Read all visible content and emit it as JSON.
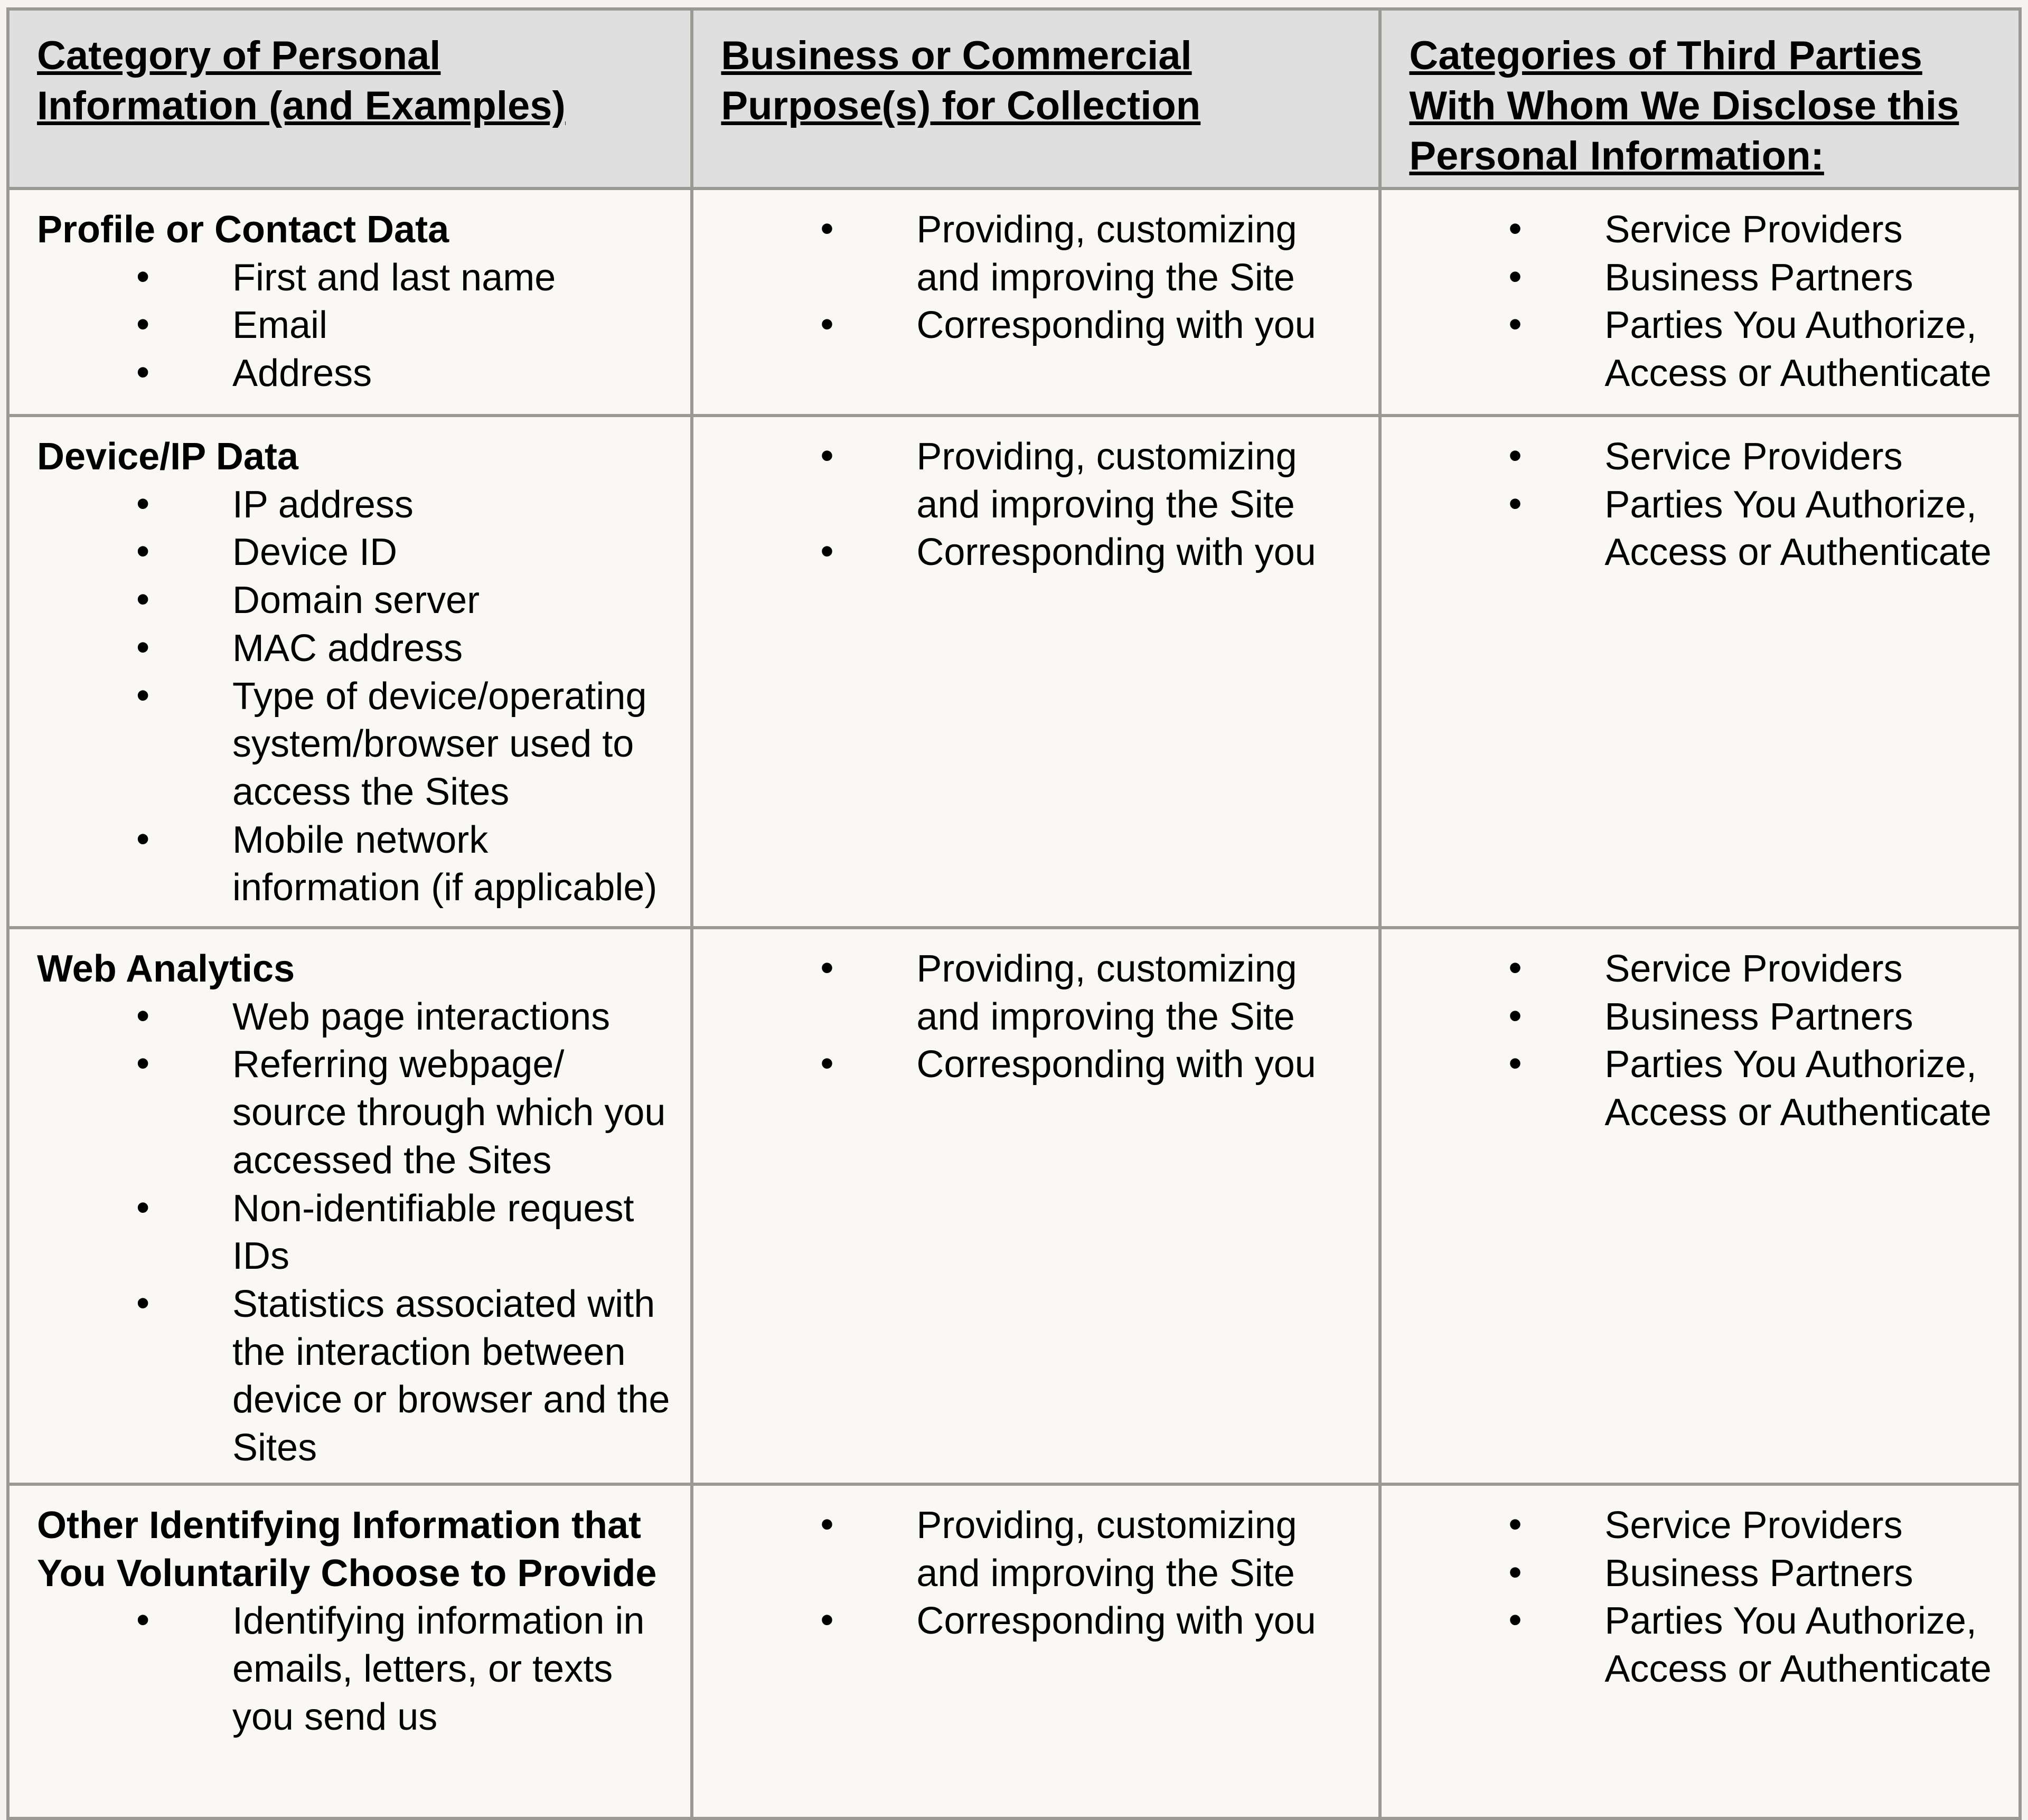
{
  "colors": {
    "header_background": "#e0dfdf",
    "body_background": "#f9f8f5",
    "page_background": "#f5f4f1",
    "border": "#9a9994",
    "text": "#000000"
  },
  "table": {
    "columns": [
      {
        "label": "Category of Personal Information (and Examples)"
      },
      {
        "label": "Business or Commercial Purpose(s) for Collection"
      },
      {
        "label": "Categories of Third Parties With Whom We Disclose this Personal Information:"
      }
    ],
    "rows": [
      {
        "category": "Profile or Contact Data",
        "examples": [
          "First and last name",
          "Email",
          "Address"
        ],
        "purposes": [
          "Providing, customizing and improving the Site",
          "Corresponding with you"
        ],
        "third_parties": [
          "Service Providers",
          "Business Partners",
          "Parties You Authorize, Access or Authenticate"
        ]
      },
      {
        "category": "Device/IP Data",
        "examples": [
          "IP address",
          "Device ID",
          "Domain server",
          "MAC address",
          "Type of device/operating system/browser used to access the Sites",
          "Mobile network information (if applicable)"
        ],
        "purposes": [
          "Providing, customizing and improving the Site",
          "Corresponding with you"
        ],
        "third_parties": [
          "Service Providers",
          "Parties You Authorize, Access or Authenticate"
        ]
      },
      {
        "category": "Web Analytics",
        "examples": [
          "Web page interactions",
          "Referring webpage/ source through which you accessed the Sites",
          "Non-identifiable request IDs",
          "Statistics associated with the interaction between device or browser and the Sites"
        ],
        "purposes": [
          "Providing, customizing and improving the Site",
          "Corresponding with you"
        ],
        "third_parties": [
          "Service Providers",
          "Business Partners",
          "Parties You Authorize, Access or Authenticate"
        ]
      },
      {
        "category": "Other Identifying Information that You Voluntarily Choose to Provide",
        "examples": [
          "Identifying information in emails, letters, or texts you send us"
        ],
        "purposes": [
          "Providing, customizing and improving the Site",
          "Corresponding with you"
        ],
        "third_parties": [
          "Service Providers",
          "Business Partners",
          "Parties You Authorize, Access or Authenticate"
        ]
      }
    ]
  }
}
